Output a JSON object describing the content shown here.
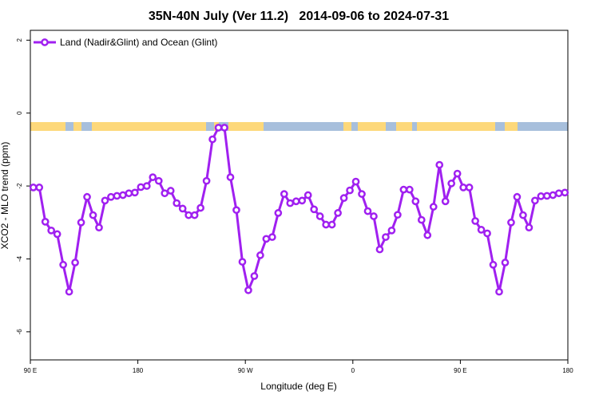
{
  "chart_data": {
    "type": "line",
    "title": "35N-40N July (Ver 11.2)   2014-09-06 to 2024-07-31",
    "xlabel": "Longitude (deg E)",
    "ylabel": "XCO2 - MLO trend (ppm)",
    "legend": "topleft",
    "xlim": [
      90,
      540
    ],
    "ylim": [
      -6.77,
      2.27
    ],
    "xticks": [
      {
        "value": 90,
        "label": "90 E"
      },
      {
        "value": 180,
        "label": "180"
      },
      {
        "value": 270,
        "label": "90 W"
      },
      {
        "value": 360,
        "label": "0"
      },
      {
        "value": 450,
        "label": "90 E"
      },
      {
        "value": 540,
        "label": "180"
      }
    ],
    "yticks": [
      2,
      0,
      -2,
      -4,
      -6
    ],
    "x": [
      92.5,
      97.5,
      102.5,
      107.5,
      112.5,
      117.5,
      122.5,
      127.5,
      132.5,
      137.5,
      142.5,
      147.5,
      152.5,
      157.5,
      162.5,
      167.5,
      172.5,
      177.5,
      182.5,
      187.5,
      192.5,
      197.5,
      202.5,
      207.5,
      212.5,
      217.5,
      222.5,
      227.5,
      232.5,
      237.5,
      242.5,
      247.5,
      252.5,
      257.5,
      262.5,
      267.5,
      272.5,
      277.5,
      282.5,
      287.5,
      292.5,
      297.5,
      302.5,
      307.5,
      312.5,
      317.5,
      322.5,
      327.5,
      332.5,
      337.5,
      342.5,
      347.5,
      352.5,
      357.5,
      362.5,
      367.5,
      372.5,
      377.5,
      382.5,
      387.5,
      392.5,
      397.5,
      402.5,
      407.5,
      412.5,
      417.5,
      422.5,
      427.5,
      432.5,
      437.5,
      442.5,
      447.5,
      452.5,
      457.5,
      462.5,
      467.5,
      472.5,
      477.5,
      482.5,
      487.5,
      492.5,
      497.5,
      502.5,
      507.5,
      512.5,
      517.5,
      522.5,
      527.5,
      532.5,
      537.5
    ],
    "series": [
      {
        "name": "Land (Nadir&Glint) and Ocean (Glint)",
        "color": "#a020f0",
        "values": [
          -2.04,
          -2.04,
          -2.98,
          -3.22,
          -3.32,
          -4.16,
          -4.9,
          -4.1,
          -3.0,
          -2.3,
          -2.8,
          -3.14,
          -2.4,
          -2.3,
          -2.27,
          -2.25,
          -2.2,
          -2.18,
          -2.03,
          -2.0,
          -1.76,
          -1.86,
          -2.2,
          -2.13,
          -2.47,
          -2.62,
          -2.8,
          -2.8,
          -2.6,
          -1.86,
          -0.72,
          -0.4,
          -0.4,
          -1.76,
          -2.66,
          -4.08,
          -4.86,
          -4.47,
          -3.9,
          -3.45,
          -3.4,
          -2.74,
          -2.22,
          -2.47,
          -2.42,
          -2.4,
          -2.25,
          -2.64,
          -2.83,
          -3.06,
          -3.06,
          -2.74,
          -2.33,
          -2.12,
          -1.88,
          -2.22,
          -2.69,
          -2.83,
          -3.74,
          -3.4,
          -3.22,
          -2.79,
          -2.1,
          -2.1,
          -2.42,
          -2.93,
          -3.35,
          -2.57,
          -1.42,
          -2.42,
          -1.93,
          -1.66,
          -2.04,
          -2.04,
          -2.96,
          -3.2,
          -3.3,
          -4.16,
          -4.9,
          -4.1,
          -3.0,
          -2.3,
          -2.8,
          -3.14,
          -2.4,
          -2.28,
          -2.27,
          -2.25,
          -2.2,
          -2.18
        ]
      }
    ]
  }
}
